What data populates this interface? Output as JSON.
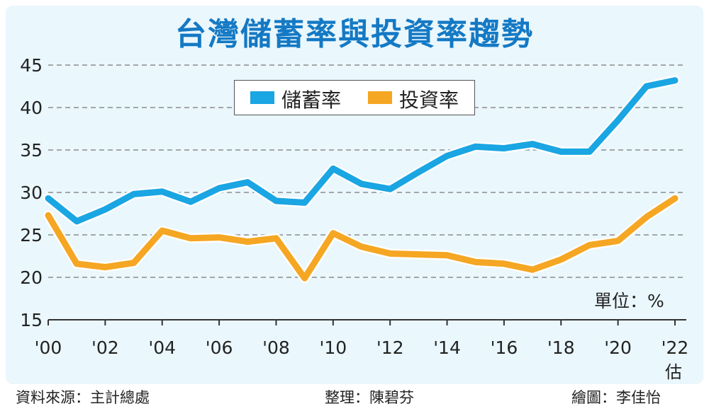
{
  "title": "台灣儲蓄率與投資率趨勢",
  "unit_label": "單位：%",
  "estimate_label": "估",
  "footer": {
    "source": "資料來源：主計總處",
    "editor": "整理：陳碧芬",
    "artist": "繪圖：李佳怡"
  },
  "colors": {
    "savings": "#1aa5e3",
    "investment": "#f5a623",
    "title": "#1479c4"
  },
  "chart_data": {
    "type": "line",
    "x": [
      2000,
      2001,
      2002,
      2003,
      2004,
      2005,
      2006,
      2007,
      2008,
      2009,
      2010,
      2011,
      2012,
      2013,
      2014,
      2015,
      2016,
      2017,
      2018,
      2019,
      2020,
      2021,
      2022
    ],
    "x_ticks": [
      2000,
      2002,
      2004,
      2006,
      2008,
      2010,
      2012,
      2014,
      2016,
      2018,
      2020,
      2022
    ],
    "x_tick_labels": [
      "'00",
      "'02",
      "'04",
      "'06",
      "'08",
      "'10",
      "'12",
      "'14",
      "'16",
      "'18",
      "'20",
      "'22"
    ],
    "ylim": [
      15,
      45
    ],
    "y_ticks": [
      15,
      20,
      25,
      30,
      35,
      40,
      45
    ],
    "grid": true,
    "legend_position": "top-center",
    "series": [
      {
        "name": "儲蓄率",
        "color": "#1aa5e3",
        "values": [
          29.3,
          26.6,
          28.0,
          29.8,
          30.1,
          28.9,
          30.5,
          31.2,
          29.0,
          28.8,
          32.8,
          31.0,
          30.4,
          32.4,
          34.3,
          35.4,
          35.2,
          35.7,
          34.8,
          34.8,
          38.5,
          42.5,
          43.2
        ]
      },
      {
        "name": "投資率",
        "color": "#f5a623",
        "values": [
          27.3,
          21.6,
          21.2,
          21.7,
          25.5,
          24.6,
          24.7,
          24.2,
          24.6,
          19.9,
          25.2,
          23.6,
          22.8,
          22.7,
          22.6,
          21.8,
          21.6,
          20.9,
          22.1,
          23.8,
          24.3,
          27.1,
          29.3
        ]
      }
    ]
  }
}
